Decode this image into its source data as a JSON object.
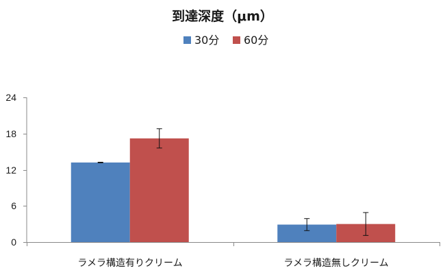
{
  "chart_data": {
    "type": "bar",
    "title": "到達深度（μm）",
    "categories": [
      "ラメラ構造有りクリーム",
      "ラメラ構造無しクリーム"
    ],
    "series": [
      {
        "name": "30分",
        "color": "#4F81BD",
        "values": [
          13.2,
          2.9
        ],
        "errors": [
          0.05,
          1.0
        ]
      },
      {
        "name": "60分",
        "color": "#C0504D",
        "values": [
          17.2,
          3.0
        ],
        "errors": [
          1.6,
          1.9
        ]
      }
    ],
    "ylim": [
      0,
      24
    ],
    "yticks": [
      "0",
      "6",
      "12",
      "18",
      "24"
    ],
    "grid": false,
    "legend_position": "top"
  }
}
